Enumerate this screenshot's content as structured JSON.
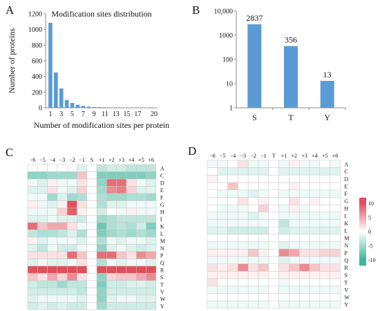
{
  "panel_labels": [
    "A",
    "B",
    "C",
    "D"
  ],
  "colors": {
    "bar": "#5b9bd5",
    "heat_pos": "#e0505a",
    "heat_neg": "#3fb59a",
    "heat_mid": "#ffffff",
    "grid": "#c8c8c8"
  },
  "chart_data": [
    {
      "id": "A",
      "type": "bar",
      "title": "Modification sites distribution",
      "xlabel": "Number of modification sites per protein",
      "ylabel": "Number of proteins",
      "ylim": [
        0,
        1200
      ],
      "yticks": [
        "0",
        "200",
        "400",
        "600",
        "800",
        "1000",
        "1200"
      ],
      "xtick_labels": [
        "1",
        "3",
        "5",
        "7",
        "9",
        "11",
        "13",
        "15",
        "17",
        "20"
      ],
      "categories": [
        1,
        2,
        3,
        4,
        5,
        6,
        7,
        8,
        9,
        10,
        11,
        12,
        13,
        14,
        15,
        16,
        17,
        18,
        19,
        20
      ],
      "values": [
        1085,
        452,
        248,
        100,
        62,
        38,
        25,
        15,
        10,
        8,
        6,
        5,
        4,
        3,
        3,
        2,
        2,
        2,
        1,
        1
      ]
    },
    {
      "id": "B",
      "type": "bar",
      "yscale": "log",
      "ylim": [
        1,
        10000
      ],
      "yticks": [
        "1",
        "10",
        "100",
        "1000",
        "10,000"
      ],
      "categories": [
        "S",
        "T",
        "Y"
      ],
      "values": [
        2837,
        356,
        13
      ],
      "data_labels": [
        "2837",
        "356",
        "13"
      ]
    },
    {
      "id": "C",
      "type": "heatmap",
      "columns": [
        "−6",
        "−5",
        "−4",
        "−3",
        "−2",
        "−1",
        "S",
        "+1",
        "+2",
        "+3",
        "+4",
        "+5",
        "+6"
      ],
      "rows": [
        "A",
        "C",
        "D",
        "E",
        "F",
        "G",
        "H",
        "I",
        "K",
        "L",
        "M",
        "N",
        "P",
        "Q",
        "R",
        "S",
        "T",
        "V",
        "W",
        "Y"
      ],
      "scale": [
        -10,
        10
      ],
      "values": [
        [
          0,
          0,
          0,
          0,
          0,
          -2,
          0,
          -4,
          -3,
          -3,
          -4,
          -4,
          -4
        ],
        [
          -7,
          -7,
          -6,
          -6,
          -6,
          4,
          0,
          -8,
          -8,
          -8,
          -8,
          -8,
          -7
        ],
        [
          -1,
          -2,
          1,
          -1,
          -1,
          2,
          0,
          -7,
          10,
          10,
          2,
          -1,
          -2
        ],
        [
          -2,
          -2,
          2,
          -1,
          -2,
          3,
          0,
          -6,
          8,
          9,
          3,
          -2,
          -2
        ],
        [
          -1,
          -1,
          -6,
          -2,
          -6,
          -5,
          0,
          -5,
          -6,
          -6,
          -5,
          -5,
          -6
        ],
        [
          1,
          -1,
          -2,
          1,
          12,
          2,
          0,
          -5,
          -2,
          -2,
          -1,
          -1,
          -1
        ],
        [
          -1,
          -1,
          -1,
          3,
          11,
          1,
          0,
          -3,
          0,
          -1,
          1,
          -1,
          -1
        ],
        [
          -2,
          -2,
          -1,
          -2,
          -2,
          -3,
          0,
          -6,
          -5,
          -4,
          -4,
          -4,
          -4
        ],
        [
          10,
          4,
          6,
          6,
          2,
          -1,
          0,
          -9,
          -5,
          -4,
          -5,
          -3,
          -8
        ],
        [
          -4,
          -5,
          -5,
          -4,
          -2,
          -5,
          0,
          -8,
          -6,
          -5,
          -6,
          -5,
          -6
        ],
        [
          1,
          -2,
          -1,
          -1,
          -1,
          -2,
          0,
          -5,
          -1,
          -2,
          -1,
          -1,
          -2
        ],
        [
          -2,
          -4,
          -1,
          -3,
          -3,
          -1,
          0,
          -7,
          -2,
          -1,
          -2,
          -3,
          -2
        ],
        [
          2,
          2,
          2,
          2,
          10,
          4,
          0,
          10,
          10,
          4,
          2,
          8,
          6
        ],
        [
          -2,
          -1,
          -2,
          -2,
          -1,
          2,
          0,
          -5,
          -1,
          -2,
          -1,
          -1,
          -2
        ],
        [
          12,
          12,
          12,
          12,
          12,
          12,
          0,
          12,
          12,
          12,
          12,
          12,
          12
        ],
        [
          4,
          2,
          6,
          3,
          8,
          2,
          0,
          -7,
          3,
          4,
          4,
          6,
          8
        ],
        [
          -3,
          -4,
          -4,
          -6,
          -4,
          -4,
          0,
          -8,
          -3,
          -3,
          -2,
          -2,
          -3
        ],
        [
          -3,
          -3,
          -3,
          -3,
          -3,
          -4,
          0,
          -7,
          -3,
          -3,
          -3,
          -3,
          -3
        ],
        [
          -2,
          -1,
          -1,
          -1,
          -1,
          -2,
          0,
          -7,
          -2,
          -1,
          -1,
          -2,
          -2
        ],
        [
          -3,
          -2,
          -3,
          -2,
          -3,
          -3,
          0,
          -6,
          -3,
          -3,
          -3,
          -3,
          -3
        ]
      ]
    },
    {
      "id": "D",
      "type": "heatmap",
      "columns": [
        "−6",
        "−5",
        "−4",
        "−3",
        "−2",
        "−1",
        "T",
        "+1",
        "+2",
        "+3",
        "+4",
        "+5",
        "+6"
      ],
      "rows": [
        "A",
        "C",
        "D",
        "E",
        "F",
        "G",
        "H",
        "I",
        "K",
        "L",
        "M",
        "N",
        "P",
        "Q",
        "R",
        "S",
        "T",
        "V",
        "W",
        "Y"
      ],
      "scale": [
        -10,
        10
      ],
      "values": [
        [
          -1,
          -1,
          0,
          2,
          -1,
          -1,
          0,
          -1,
          1,
          -1,
          -1,
          0,
          -1
        ],
        [
          0,
          -2,
          -2,
          -2,
          -2,
          -2,
          0,
          -2,
          -2,
          -2,
          -2,
          -2,
          -2
        ],
        [
          1,
          0,
          0,
          0,
          0,
          0,
          0,
          0,
          0,
          0,
          0,
          0,
          0
        ],
        [
          0,
          0,
          4,
          0,
          0,
          0,
          0,
          0,
          1,
          0,
          0,
          0,
          0
        ],
        [
          0,
          -1,
          -1,
          -1,
          -2,
          -1,
          0,
          -1,
          -1,
          -1,
          -1,
          -1,
          -1
        ],
        [
          0,
          0,
          0,
          2,
          0,
          1,
          0,
          0,
          2,
          0,
          1,
          0,
          0
        ],
        [
          0,
          -1,
          -1,
          -1,
          0,
          3,
          0,
          -1,
          1,
          -1,
          0,
          0,
          0
        ],
        [
          -1,
          -1,
          -1,
          -1,
          -2,
          -1,
          0,
          -1,
          -1,
          -1,
          -1,
          -1,
          -1
        ],
        [
          -1,
          -1,
          -1,
          -1,
          -1,
          -1,
          0,
          -4,
          -1,
          -1,
          -1,
          -1,
          -1
        ],
        [
          -2,
          -2,
          -3,
          -3,
          -3,
          -3,
          0,
          -3,
          -2,
          -2,
          -2,
          -2,
          -2
        ],
        [
          0,
          0,
          0,
          0,
          0,
          0,
          0,
          0,
          0,
          0,
          0,
          0,
          0
        ],
        [
          -1,
          -1,
          -1,
          -1,
          -1,
          -1,
          0,
          -2,
          -1,
          -1,
          -1,
          -1,
          -1
        ],
        [
          1,
          1,
          1,
          1,
          4,
          1,
          0,
          8,
          6,
          2,
          2,
          3,
          3
        ],
        [
          -1,
          -1,
          -1,
          -1,
          -1,
          -1,
          0,
          -2,
          -1,
          -1,
          -1,
          -1,
          -1
        ],
        [
          2,
          1,
          2,
          8,
          2,
          4,
          0,
          2,
          4,
          8,
          4,
          2,
          2
        ],
        [
          1,
          1,
          1,
          1,
          1,
          1,
          0,
          1,
          1,
          1,
          1,
          1,
          1
        ],
        [
          2,
          0,
          0,
          0,
          0,
          0,
          0,
          -1,
          0,
          0,
          0,
          0,
          0
        ],
        [
          -1,
          -1,
          -1,
          -1,
          -1,
          -1,
          0,
          -1,
          -1,
          -1,
          -1,
          -1,
          -1
        ],
        [
          0,
          0,
          0,
          0,
          0,
          0,
          0,
          0,
          0,
          0,
          0,
          0,
          0
        ],
        [
          -1,
          -1,
          -1,
          -1,
          -1,
          -1,
          0,
          -1,
          -1,
          -1,
          -1,
          -1,
          -1
        ]
      ]
    }
  ],
  "colorbar": {
    "ticks": [
      "10",
      "5",
      "0",
      "-5",
      "-10"
    ],
    "values": [
      10,
      5,
      0,
      -5,
      -10
    ],
    "range": [
      -12,
      12
    ]
  }
}
